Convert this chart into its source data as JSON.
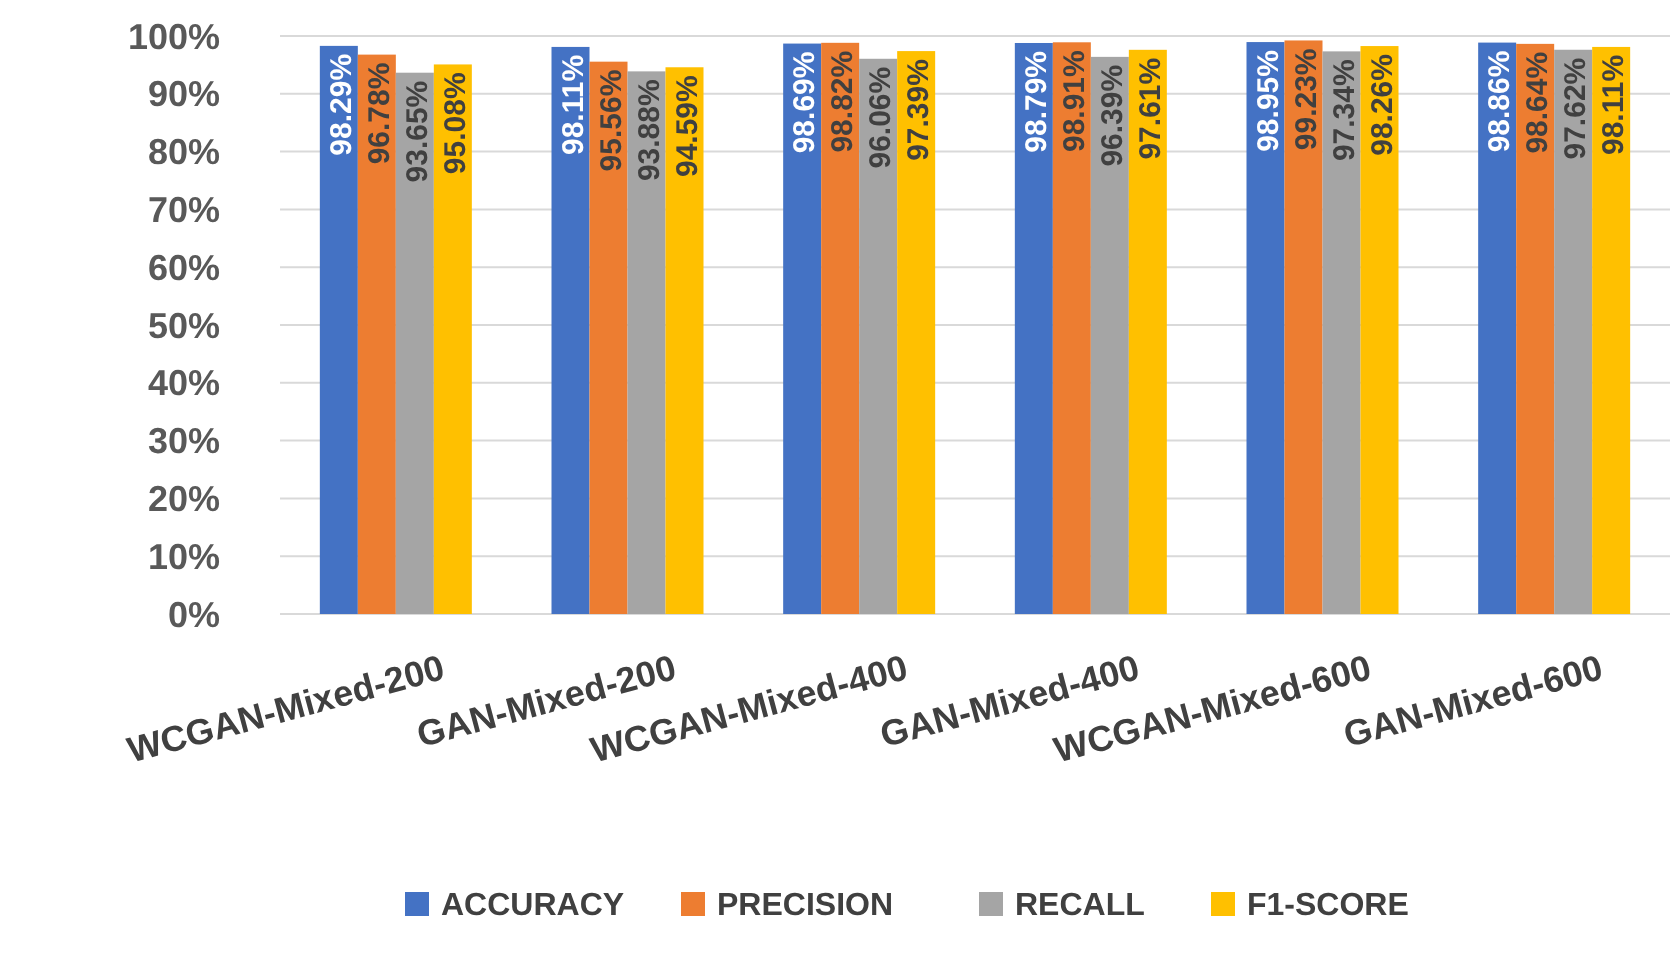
{
  "chart_data": {
    "type": "bar",
    "categories": [
      "WCGAN-Mixed-200",
      "GAN-Mixed-200",
      "WCGAN-Mixed-400",
      "GAN-Mixed-400",
      "WCGAN-Mixed-600",
      "GAN-Mixed-600"
    ],
    "series": [
      {
        "name": "ACCURACY",
        "color": "#4472c4",
        "values": [
          98.29,
          98.11,
          98.69,
          98.79,
          98.95,
          98.86
        ],
        "value_labels": [
          "98.29%",
          "98.11%",
          "98.69%",
          "98.79%",
          "98.95%",
          "98.86%"
        ]
      },
      {
        "name": "PRECISION",
        "color": "#ed7d31",
        "values": [
          96.78,
          95.56,
          98.82,
          98.91,
          99.23,
          98.64
        ],
        "value_labels": [
          "96.78%",
          "95.56%",
          "98.82%",
          "98.91%",
          "99.23%",
          "98.64%"
        ]
      },
      {
        "name": "RECALL",
        "color": "#a5a5a5",
        "values": [
          93.65,
          93.88,
          96.06,
          96.39,
          97.34,
          97.62
        ],
        "value_labels": [
          "93.65%",
          "93.88%",
          "96.06%",
          "96.39%",
          "97.34%",
          "97.62%"
        ]
      },
      {
        "name": "F1-SCORE",
        "color": "#ffc000",
        "values": [
          95.08,
          94.59,
          97.39,
          97.61,
          98.26,
          98.11
        ],
        "value_labels": [
          "95.08%",
          "94.59%",
          "97.39%",
          "97.61%",
          "98.26%",
          "98.11%"
        ]
      }
    ],
    "ylim": [
      0,
      100
    ],
    "yticks": [
      {
        "value": 0,
        "label": "0%"
      },
      {
        "value": 10,
        "label": "10%"
      },
      {
        "value": 20,
        "label": "20%"
      },
      {
        "value": 30,
        "label": "30%"
      },
      {
        "value": 40,
        "label": "40%"
      },
      {
        "value": 50,
        "label": "50%"
      },
      {
        "value": 60,
        "label": "60%"
      },
      {
        "value": 70,
        "label": "70%"
      },
      {
        "value": 80,
        "label": "80%"
      },
      {
        "value": 90,
        "label": "90%"
      },
      {
        "value": 100,
        "label": "100%"
      }
    ],
    "grid": "y",
    "legend": "bottom"
  }
}
